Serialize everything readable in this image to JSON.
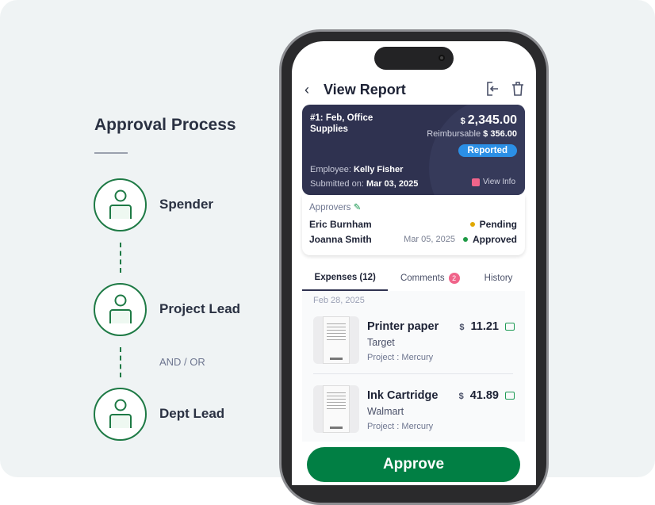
{
  "process": {
    "title": "Approval Process",
    "steps": [
      {
        "label": "Spender"
      },
      {
        "label": "Project Lead"
      },
      {
        "label": "Dept Lead"
      }
    ],
    "connector_label": "AND / OR"
  },
  "header": {
    "title": "View Report"
  },
  "report": {
    "title": "#1: Feb, Office Supplies",
    "currency": "$",
    "amount": "2,345.00",
    "reimbursable_label": "Reimbursable",
    "reimbursable": "$ 356.00",
    "status": "Reported",
    "employee_label": "Employee:",
    "employee": "Kelly Fisher",
    "submitted_label": "Submitted on:",
    "submitted": "Mar 03, 2025",
    "view_info": "View Info"
  },
  "approvers": {
    "label": "Approvers",
    "items": [
      {
        "name": "Eric Burnham",
        "date": "",
        "status": "Pending",
        "color": "#e0a800"
      },
      {
        "name": "Joanna Smith",
        "date": "Mar 05, 2025",
        "status": "Approved",
        "color": "#1e9a45"
      }
    ]
  },
  "tabs": [
    {
      "label": "Expenses (12)"
    },
    {
      "label": "Comments",
      "badge": "2"
    },
    {
      "label": "History"
    }
  ],
  "expenses": {
    "date": "Feb 28, 2025",
    "items": [
      {
        "name": "Printer paper",
        "merchant": "Target",
        "project": "Project : Mercury",
        "currency": "$",
        "amount": "11.21"
      },
      {
        "name": "Ink Cartridge",
        "merchant": "Walmart",
        "project": "Project : Mercury",
        "currency": "$",
        "amount": "41.89"
      }
    ]
  },
  "approve_label": "Approve"
}
